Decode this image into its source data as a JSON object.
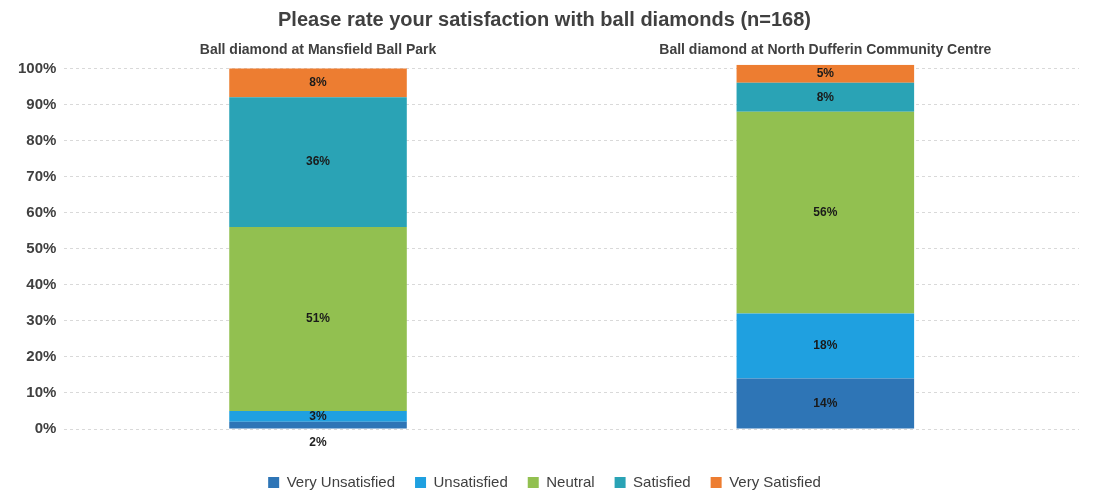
{
  "chart_data": {
    "type": "bar",
    "title": "Please rate your satisfaction with ball diamonds (n=168)",
    "categories": [
      "Ball diamond at Mansfield Ball Park",
      "Ball diamond at North Dufferin Community Centre"
    ],
    "stacked": true,
    "ylim": [
      0,
      101
    ],
    "yticks": [
      {
        "value": 0,
        "label": "0%"
      },
      {
        "value": 10,
        "label": "10%"
      },
      {
        "value": 20,
        "label": "20%"
      },
      {
        "value": 30,
        "label": "30%"
      },
      {
        "value": 40,
        "label": "40%"
      },
      {
        "value": 50,
        "label": "50%"
      },
      {
        "value": 60,
        "label": "60%"
      },
      {
        "value": 70,
        "label": "70%"
      },
      {
        "value": 80,
        "label": "80%"
      },
      {
        "value": 90,
        "label": "90%"
      },
      {
        "value": 100,
        "label": "100%"
      }
    ],
    "grid": "y",
    "legend": "bottom",
    "series": [
      {
        "name": "Very Unsatisfied",
        "color": "#2e75b6",
        "values": [
          2,
          14
        ],
        "value_labels": [
          "2%",
          "14%"
        ]
      },
      {
        "name": "Unsatisfied",
        "color": "#1fa0e0",
        "values": [
          3,
          18
        ],
        "value_labels": [
          "3%",
          "18%"
        ]
      },
      {
        "name": "Neutral",
        "color": "#92c050",
        "values": [
          51,
          56
        ],
        "value_labels": [
          "51%",
          "56%"
        ]
      },
      {
        "name": "Satisfied",
        "color": "#2aa3b5",
        "values": [
          36,
          8
        ],
        "value_labels": [
          "36%",
          "8%"
        ]
      },
      {
        "name": "Very Satisfied",
        "color": "#ed7d31",
        "values": [
          8,
          5
        ],
        "value_labels": [
          "8%",
          "5%"
        ]
      }
    ]
  }
}
